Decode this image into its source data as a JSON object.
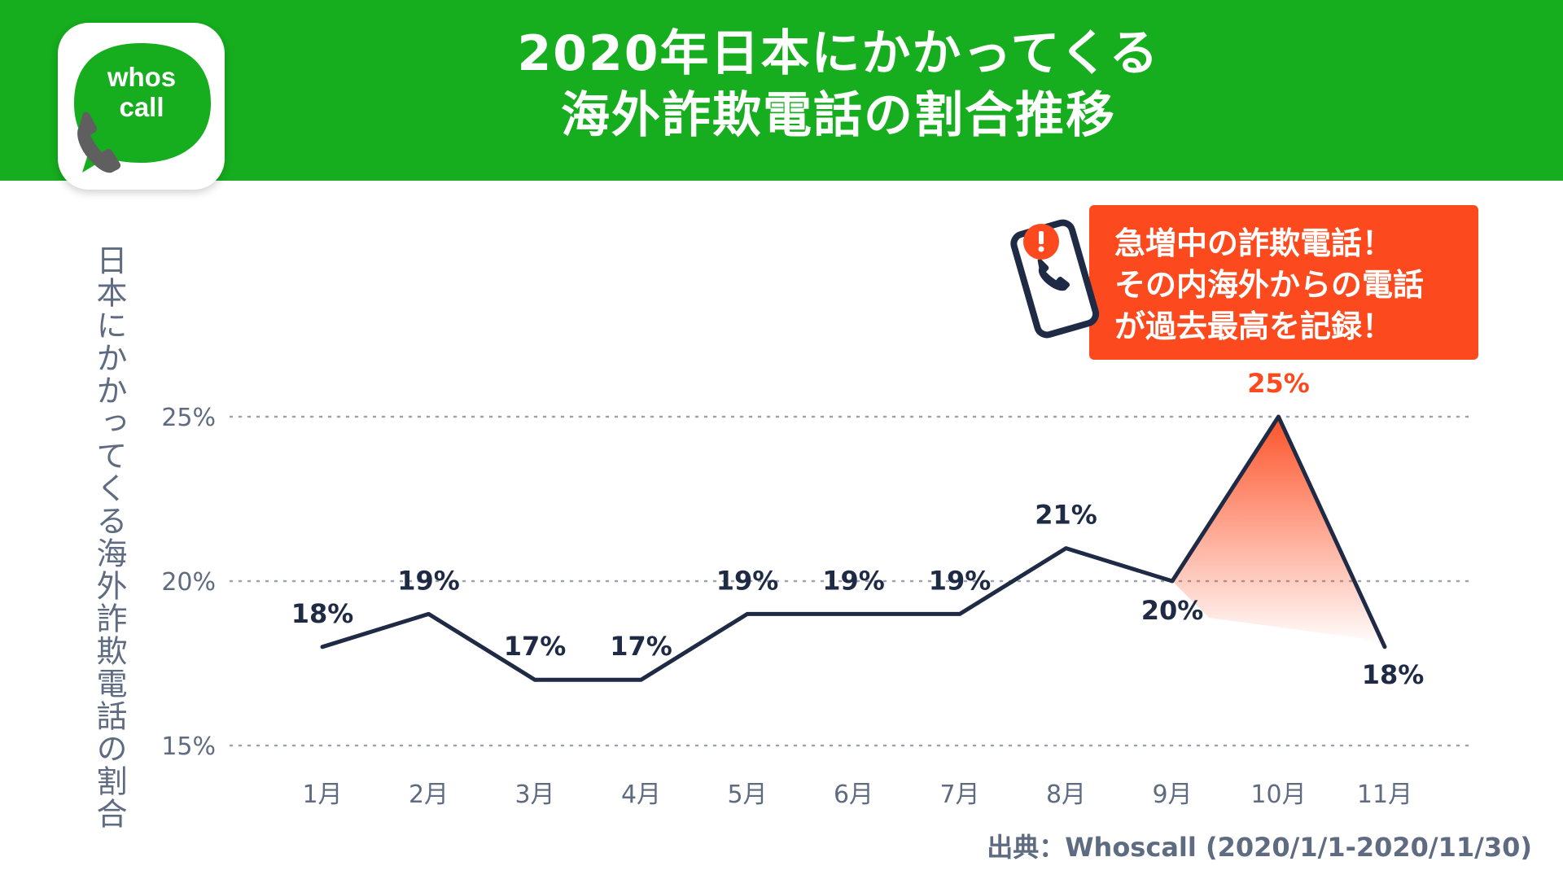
{
  "title": {
    "line1": "2020年日本にかかってくる",
    "line2": "海外詐欺電話の割合推移"
  },
  "logo": {
    "text_line1": "whos",
    "text_line2": "call",
    "icon": "phone-icon"
  },
  "callout": {
    "line1": "急増中の詐欺電話！",
    "line2": "その内海外からの電話",
    "line3": "が過去最高を記録！",
    "icon": "phone-alert-icon",
    "color": "#fc4a1e"
  },
  "source": "出典：Whoscall (2020/1/1-2020/11/30)",
  "colors": {
    "header": "#16ad1f",
    "line": "#1f2a44",
    "highlight": "#fc4a1e",
    "axis_text": "#5f6b80",
    "grid": "#9aa3b2"
  },
  "chart_data": {
    "type": "line",
    "title": "2020年日本にかかってくる海外詐欺電話の割合推移",
    "xlabel": "",
    "ylabel": "日本にかかってくる海外詐欺電話の割合",
    "categories": [
      "1月",
      "2月",
      "3月",
      "4月",
      "5月",
      "6月",
      "7月",
      "8月",
      "9月",
      "10月",
      "11月"
    ],
    "values": [
      18,
      19,
      17,
      17,
      19,
      19,
      19,
      21,
      20,
      25,
      18
    ],
    "data_labels": [
      "18%",
      "19%",
      "17%",
      "17%",
      "19%",
      "19%",
      "19%",
      "21%",
      "20%",
      "25%",
      "18%"
    ],
    "highlight_index": 9,
    "yticks": [
      15,
      20,
      25
    ],
    "ytick_labels": [
      "15%",
      "20%",
      "25%"
    ],
    "ylim": [
      15,
      25
    ],
    "grid": "horizontal dotted",
    "legend": "none"
  }
}
